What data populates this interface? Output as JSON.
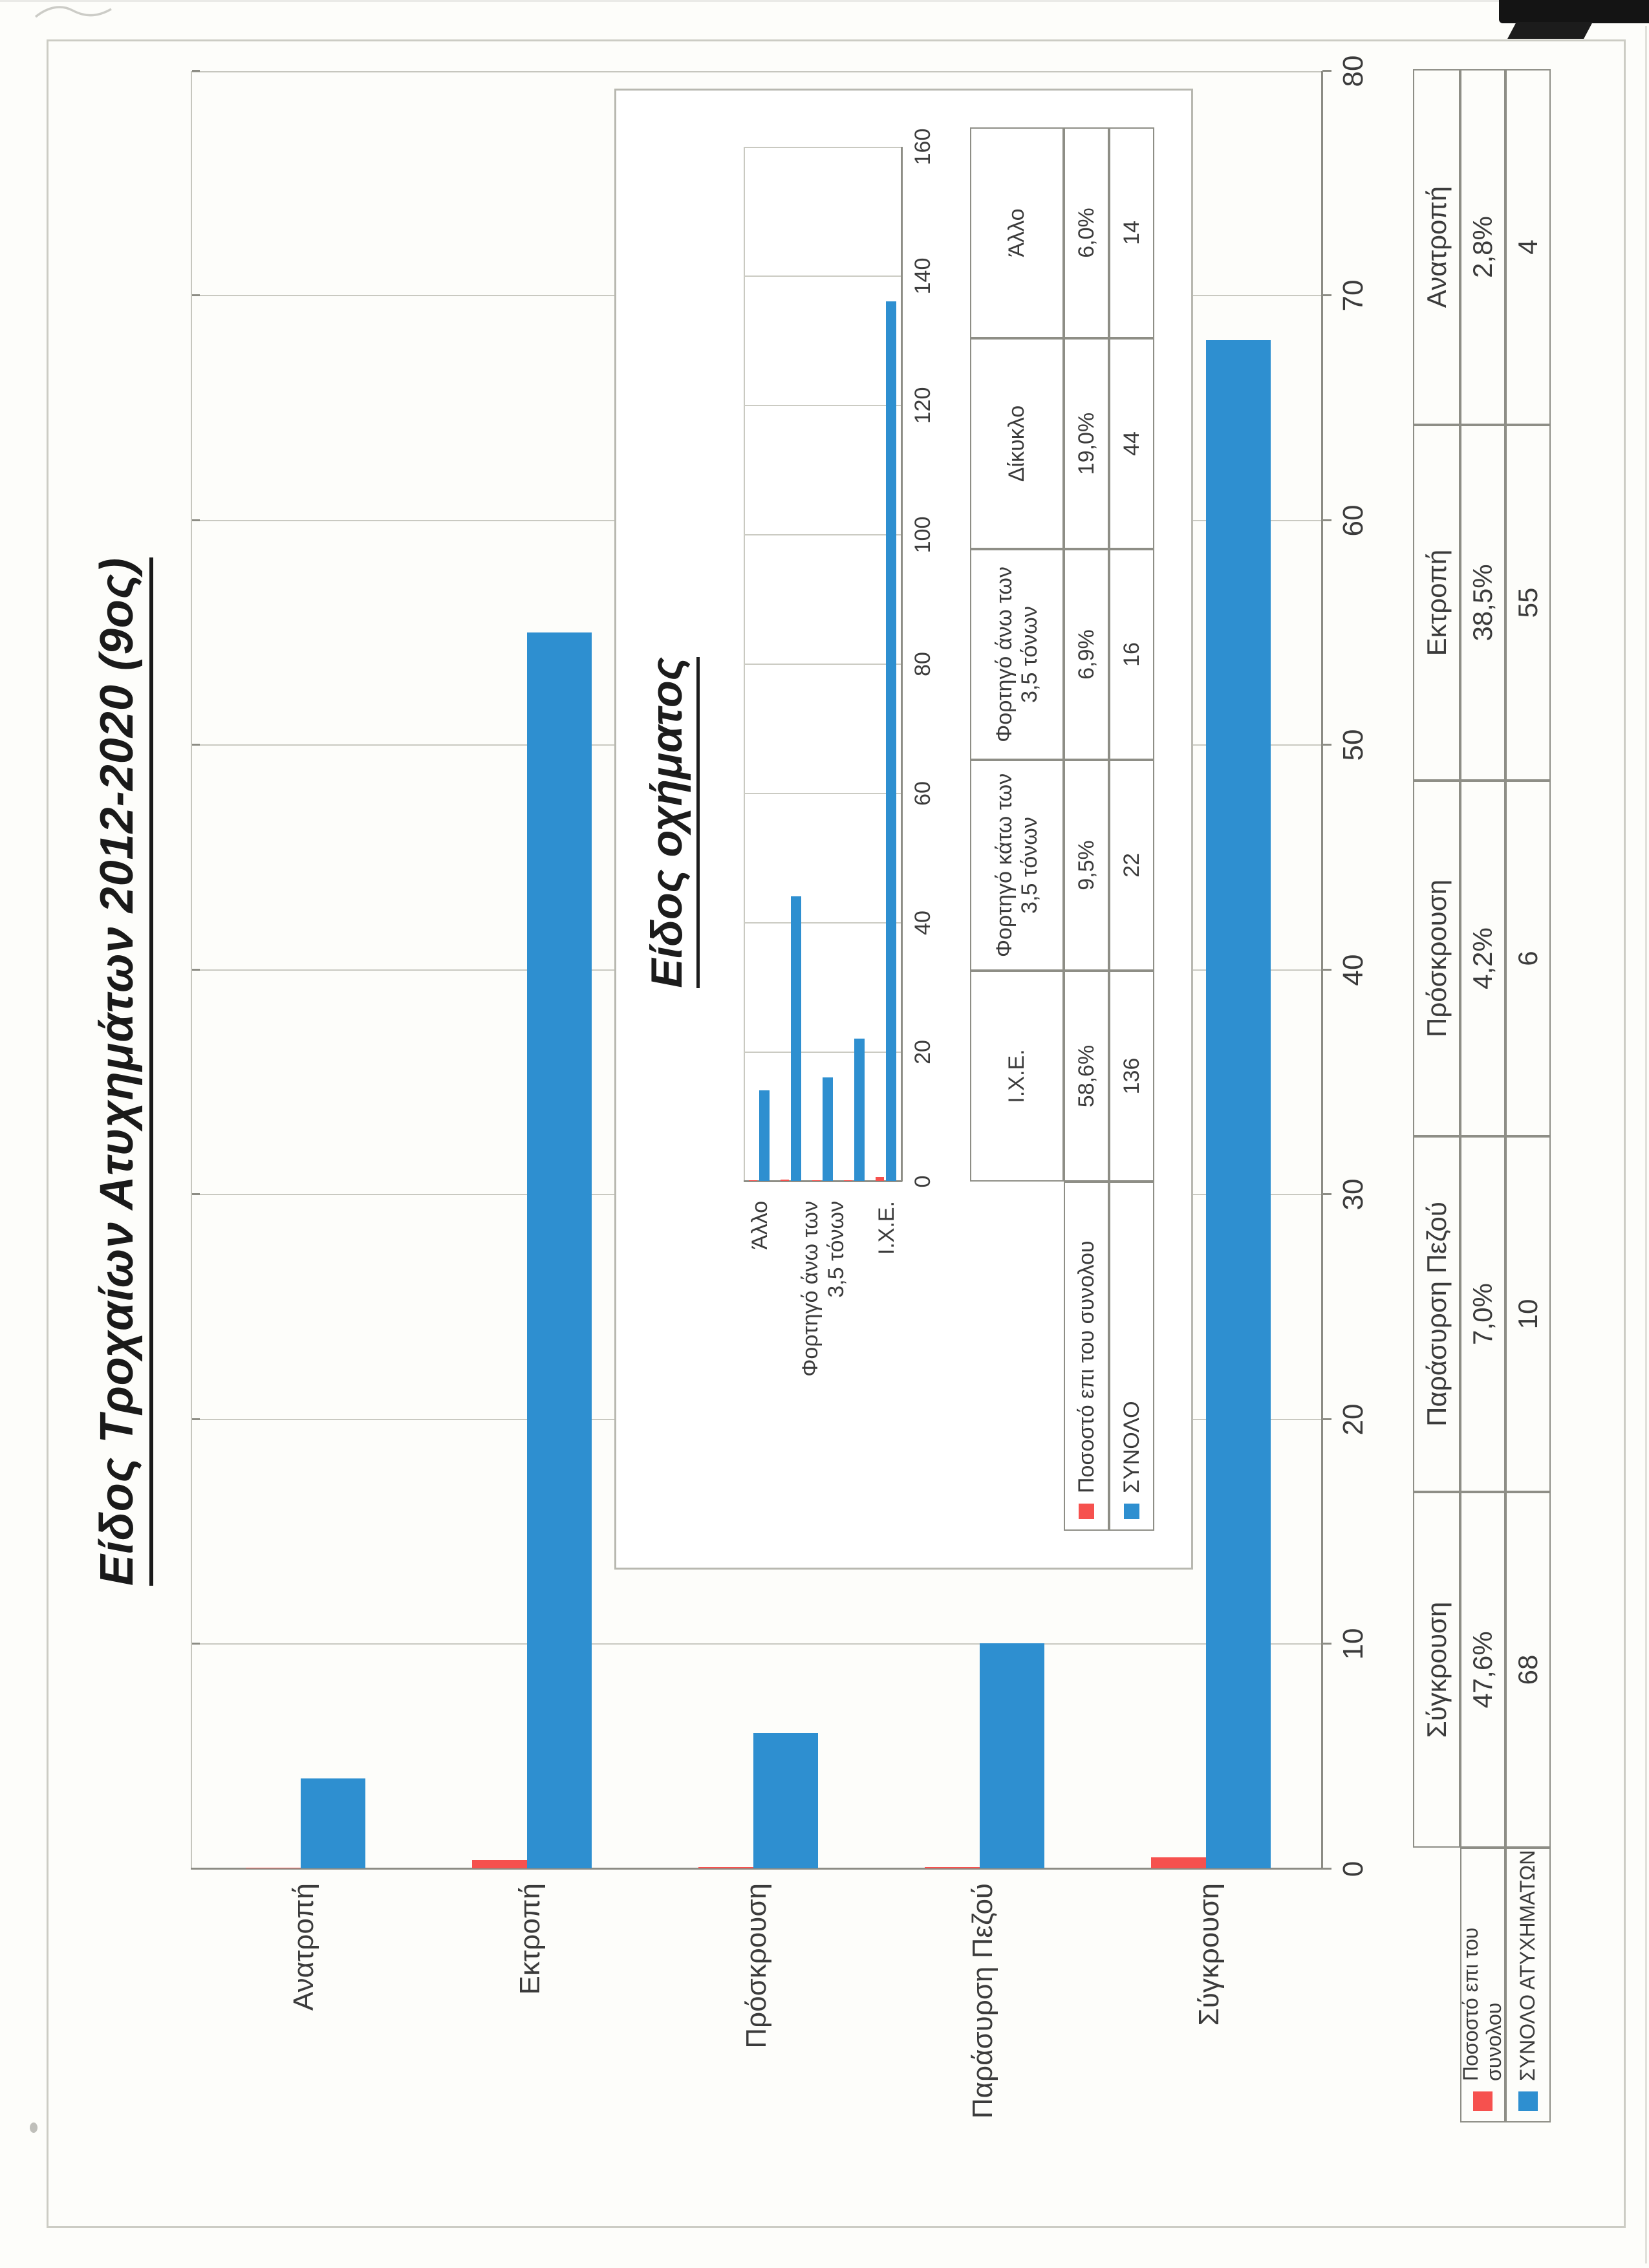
{
  "chart_data": [
    {
      "type": "bar",
      "orientation": "horizontal",
      "title": "Είδος Τροχαίων Ατυχημάτων 2012-2020  (9ος)",
      "categories": [
        "Σύγκρουση",
        "Παράσυρση Πεζού",
        "Πρόσκρουση",
        "Εκτροπή",
        "Ανατροπή"
      ],
      "bar_rows_top_to_bottom": [
        "Ανατροπή",
        "Εκτροπή",
        "Πρόσκρουση",
        "Παράσυρση Πεζού",
        "Σύγκρουση"
      ],
      "series": [
        {
          "name": "Ποσοστό  επι του συνολου",
          "color": "#f6514e",
          "values_percent": [
            47.6,
            7.0,
            4.2,
            38.5,
            2.8
          ],
          "value_labels": [
            "47,6%",
            "7,0%",
            "4,2%",
            "38,5%",
            "2,8%"
          ]
        },
        {
          "name": "ΣΥΝΟΛΟ ΑΤΥΧΗΜΑΤΩΝ",
          "color": "#2e8fd0",
          "values": [
            68,
            10,
            6,
            55,
            4
          ]
        }
      ],
      "value_axis": {
        "min": 0,
        "max": 80,
        "tick_step": 10,
        "tick_labels": [
          "0",
          "10",
          "20",
          "30",
          "40",
          "50",
          "60",
          "70",
          "80"
        ]
      },
      "grid": true,
      "data_table_shown": true
    },
    {
      "type": "bar",
      "orientation": "horizontal",
      "title": "Είδος οχήματος",
      "categories": [
        "Ι.Χ.Ε.",
        "Φορτηγό κάτω των 3,5 τόνων",
        "Φορτηγό άνω των 3,5 τόνων",
        "Δίκυκλο",
        "Άλλο"
      ],
      "bar_rows_top_to_bottom": [
        "Άλλο",
        "Δίκυκλο",
        "Φορτηγό άνω των 3,5 τόνων",
        "Φορτηγό κάτω των 3,5 τόνων",
        "Ι.Χ.Ε."
      ],
      "visible_row_labels": [
        {
          "row": 0,
          "text": "Άλλο"
        },
        {
          "row": 2,
          "text": "Φορτηγό άνω των\n3,5 τόνων"
        },
        {
          "row": 4,
          "text": "Ι.Χ.Ε."
        }
      ],
      "series": [
        {
          "name": "Ποσοστό  επι του συνολου",
          "color": "#f6514e",
          "values_percent": [
            58.6,
            9.5,
            6.9,
            19.0,
            6.0
          ],
          "value_labels": [
            "58,6%",
            "9,5%",
            "6,9%",
            "19,0%",
            "6,0%"
          ]
        },
        {
          "name": "ΣΥΝΟΛΟ",
          "color": "#2e8fd0",
          "values": [
            136,
            22,
            16,
            44,
            14
          ]
        }
      ],
      "value_axis": {
        "min": 0,
        "max": 160,
        "tick_step": 20,
        "tick_labels": [
          "0",
          "20",
          "40",
          "60",
          "80",
          "100",
          "120",
          "140",
          "160"
        ]
      },
      "grid": true,
      "data_table_shown": true
    }
  ]
}
